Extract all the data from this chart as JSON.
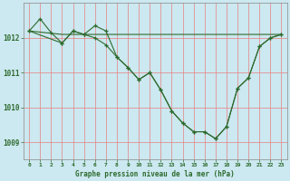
{
  "title": "Graphe pression niveau de la mer (hPa)",
  "bg_color": "#cce8f0",
  "grid_color": "#e88080",
  "line_color": "#2d6a2d",
  "xlim": [
    -0.5,
    23.5
  ],
  "ylim": [
    1008.5,
    1013.0
  ],
  "yticks": [
    1009,
    1010,
    1011,
    1012
  ],
  "xticks": [
    0,
    1,
    2,
    3,
    4,
    5,
    6,
    7,
    8,
    9,
    10,
    11,
    12,
    13,
    14,
    15,
    16,
    17,
    18,
    19,
    20,
    21,
    22,
    23
  ],
  "series1_x": [
    0,
    1,
    2,
    3,
    4,
    5,
    6,
    7,
    8,
    9,
    10,
    11,
    12,
    13,
    14,
    15,
    16,
    17,
    18,
    19,
    20,
    21,
    22,
    23
  ],
  "series1_y": [
    1012.2,
    1012.55,
    1012.15,
    1011.85,
    1012.2,
    1012.1,
    1012.0,
    1011.8,
    1011.45,
    1011.15,
    1010.8,
    1011.0,
    1010.5,
    1009.9,
    1009.55,
    1009.3,
    1009.3,
    1009.1,
    1009.45,
    1010.55,
    1010.85,
    1011.75,
    1012.0,
    1012.1
  ],
  "series2_x": [
    0,
    3,
    22,
    23
  ],
  "series2_y": [
    1012.2,
    1012.1,
    1012.1,
    1012.1
  ],
  "series3_x": [
    0,
    3,
    4,
    5,
    6,
    7,
    8,
    9,
    10,
    11,
    12,
    13,
    14,
    15,
    16,
    17,
    18,
    19,
    20,
    21,
    22,
    23
  ],
  "series3_y": [
    1012.2,
    1011.85,
    1012.2,
    1012.1,
    1012.35,
    1012.2,
    1011.45,
    1011.15,
    1010.8,
    1011.0,
    1010.5,
    1009.9,
    1009.55,
    1009.3,
    1009.3,
    1009.1,
    1009.45,
    1010.55,
    1010.85,
    1011.75,
    1012.0,
    1012.1
  ]
}
